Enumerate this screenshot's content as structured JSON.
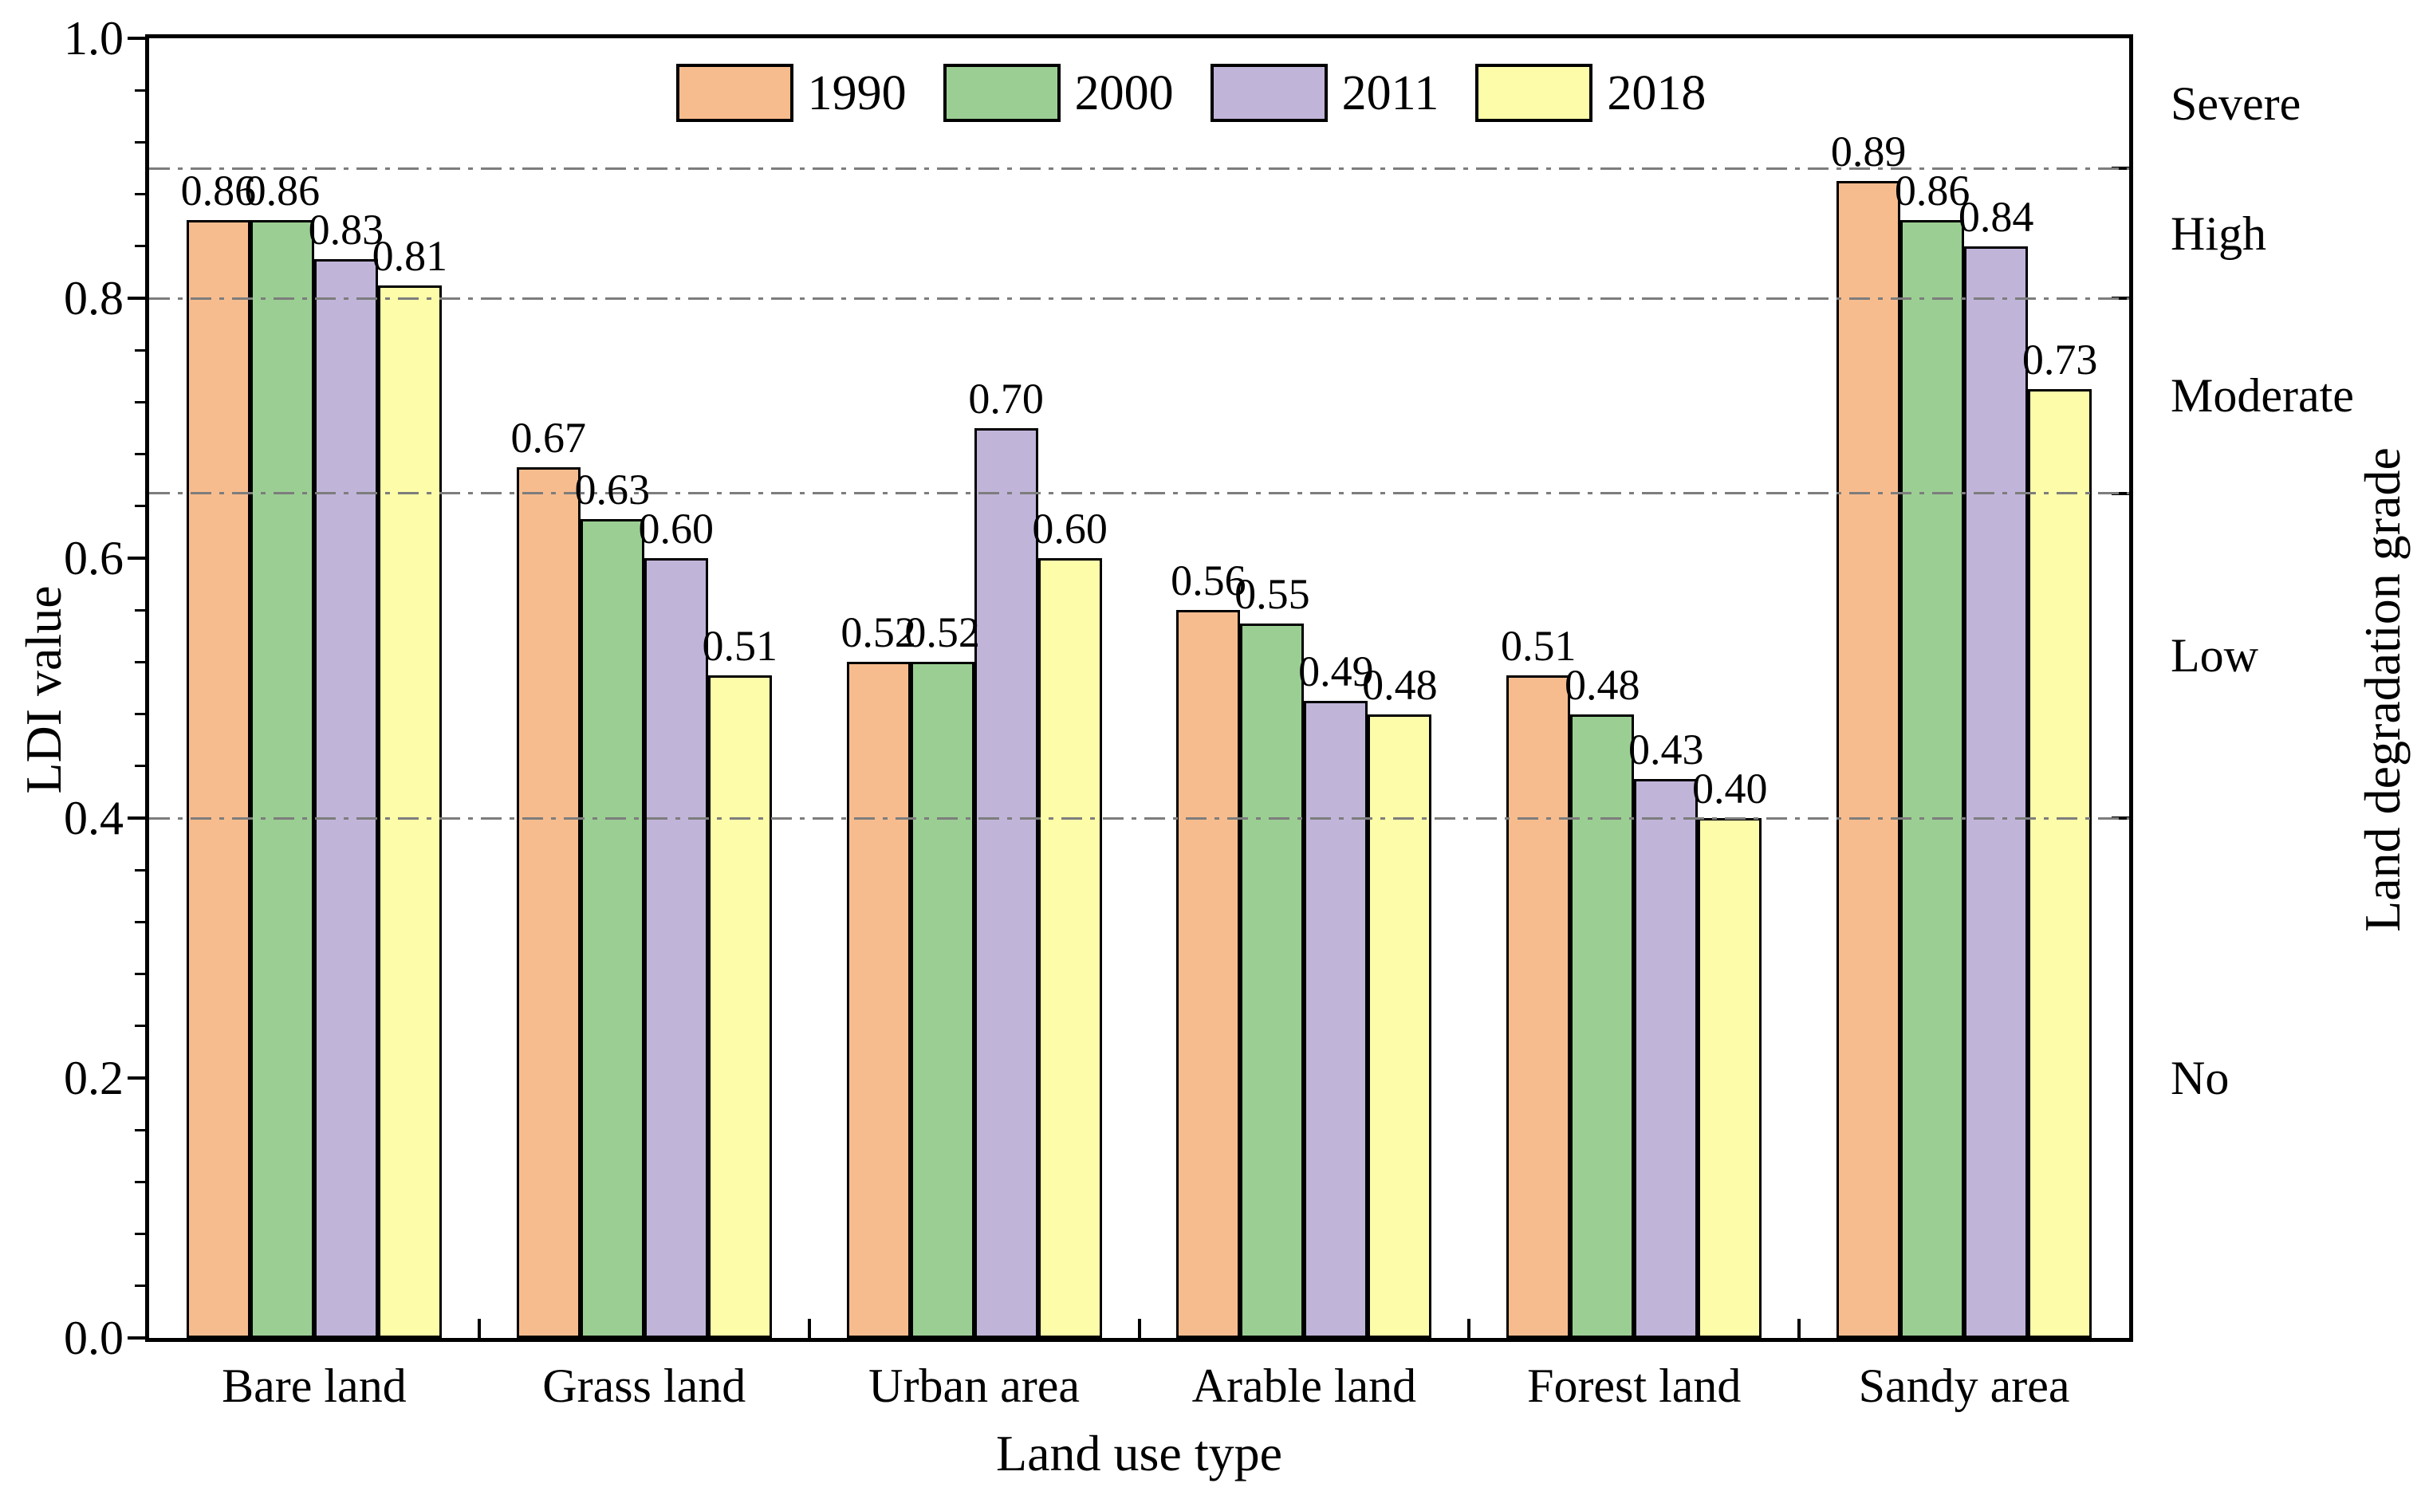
{
  "chart_data": {
    "type": "bar",
    "title": "",
    "xlabel": "Land use type",
    "ylabel_left": "LDI value",
    "ylabel_right": "Land degradation grade",
    "categories": [
      "Bare land",
      "Grass land",
      "Urban area",
      "Arable land",
      "Forest land",
      "Sandy area"
    ],
    "series": [
      {
        "name": "1990",
        "color": "#F7BC8E",
        "values": [
          0.86,
          0.67,
          0.52,
          0.56,
          0.51,
          0.89
        ]
      },
      {
        "name": "2000",
        "color": "#9BCE93",
        "values": [
          0.86,
          0.63,
          0.52,
          0.55,
          0.48,
          0.86
        ]
      },
      {
        "name": "2011",
        "color": "#C1B4D9",
        "values": [
          0.83,
          0.6,
          0.7,
          0.49,
          0.43,
          0.84
        ]
      },
      {
        "name": "2018",
        "color": "#FDFDA9",
        "values": [
          0.81,
          0.51,
          0.6,
          0.48,
          0.4,
          0.73
        ]
      }
    ],
    "value_label_decimals": 2,
    "ylim": [
      0.0,
      1.0
    ],
    "y_major_ticks": [
      {
        "value": 0.0,
        "label": "0.0"
      },
      {
        "value": 0.2,
        "label": "0.2"
      },
      {
        "value": 0.4,
        "label": "0.4"
      },
      {
        "value": 0.6,
        "label": "0.6"
      },
      {
        "value": 0.8,
        "label": "0.8"
      },
      {
        "value": 1.0,
        "label": "1.0"
      }
    ],
    "y_minor_step": 0.04,
    "gridlines": [
      0.9,
      0.8,
      0.65,
      0.4
    ],
    "grid_style": "dash-dot",
    "grid_color": "#7d7d7d",
    "bar_outline_color": "#000000",
    "legend_position": "top-center",
    "grade_labels": [
      {
        "label": "Severe",
        "value": 0.95
      },
      {
        "label": "High",
        "value": 0.85
      },
      {
        "label": "Moderate",
        "value": 0.725
      },
      {
        "label": "Low",
        "value": 0.525
      },
      {
        "label": "No",
        "value": 0.2
      }
    ]
  }
}
